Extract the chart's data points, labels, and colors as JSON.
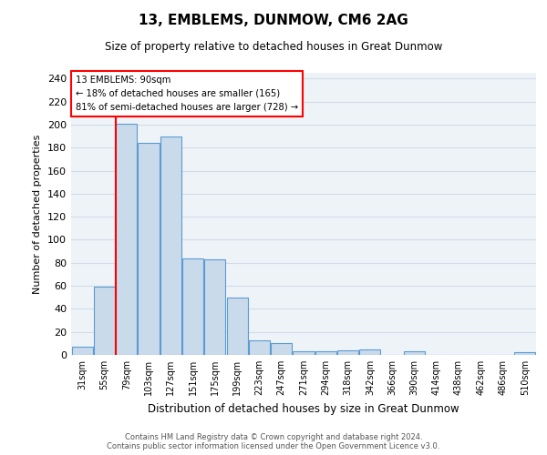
{
  "title": "13, EMBLEMS, DUNMOW, CM6 2AG",
  "subtitle": "Size of property relative to detached houses in Great Dunmow",
  "xlabel": "Distribution of detached houses by size in Great Dunmow",
  "ylabel": "Number of detached properties",
  "bar_labels": [
    "31sqm",
    "55sqm",
    "79sqm",
    "103sqm",
    "127sqm",
    "151sqm",
    "175sqm",
    "199sqm",
    "223sqm",
    "247sqm",
    "271sqm",
    "294sqm",
    "318sqm",
    "342sqm",
    "366sqm",
    "390sqm",
    "414sqm",
    "438sqm",
    "462sqm",
    "486sqm",
    "510sqm"
  ],
  "bar_values": [
    7,
    59,
    201,
    184,
    190,
    84,
    83,
    50,
    13,
    10,
    3,
    3,
    4,
    5,
    0,
    3,
    0,
    0,
    0,
    0,
    2
  ],
  "bar_color": "#c9daea",
  "bar_edge_color": "#5b9bd5",
  "grid_color": "#d0dce8",
  "background_color": "#eef3f8",
  "red_line_x": 1.5,
  "annotation_box_text": [
    "13 EMBLEMS: 90sqm",
    "← 18% of detached houses are smaller (165)",
    "81% of semi-detached houses are larger (728) →"
  ],
  "ylim": [
    0,
    245
  ],
  "yticks": [
    0,
    20,
    40,
    60,
    80,
    100,
    120,
    140,
    160,
    180,
    200,
    220,
    240
  ],
  "footer_line1": "Contains HM Land Registry data © Crown copyright and database right 2024.",
  "footer_line2": "Contains public sector information licensed under the Open Government Licence v3.0."
}
